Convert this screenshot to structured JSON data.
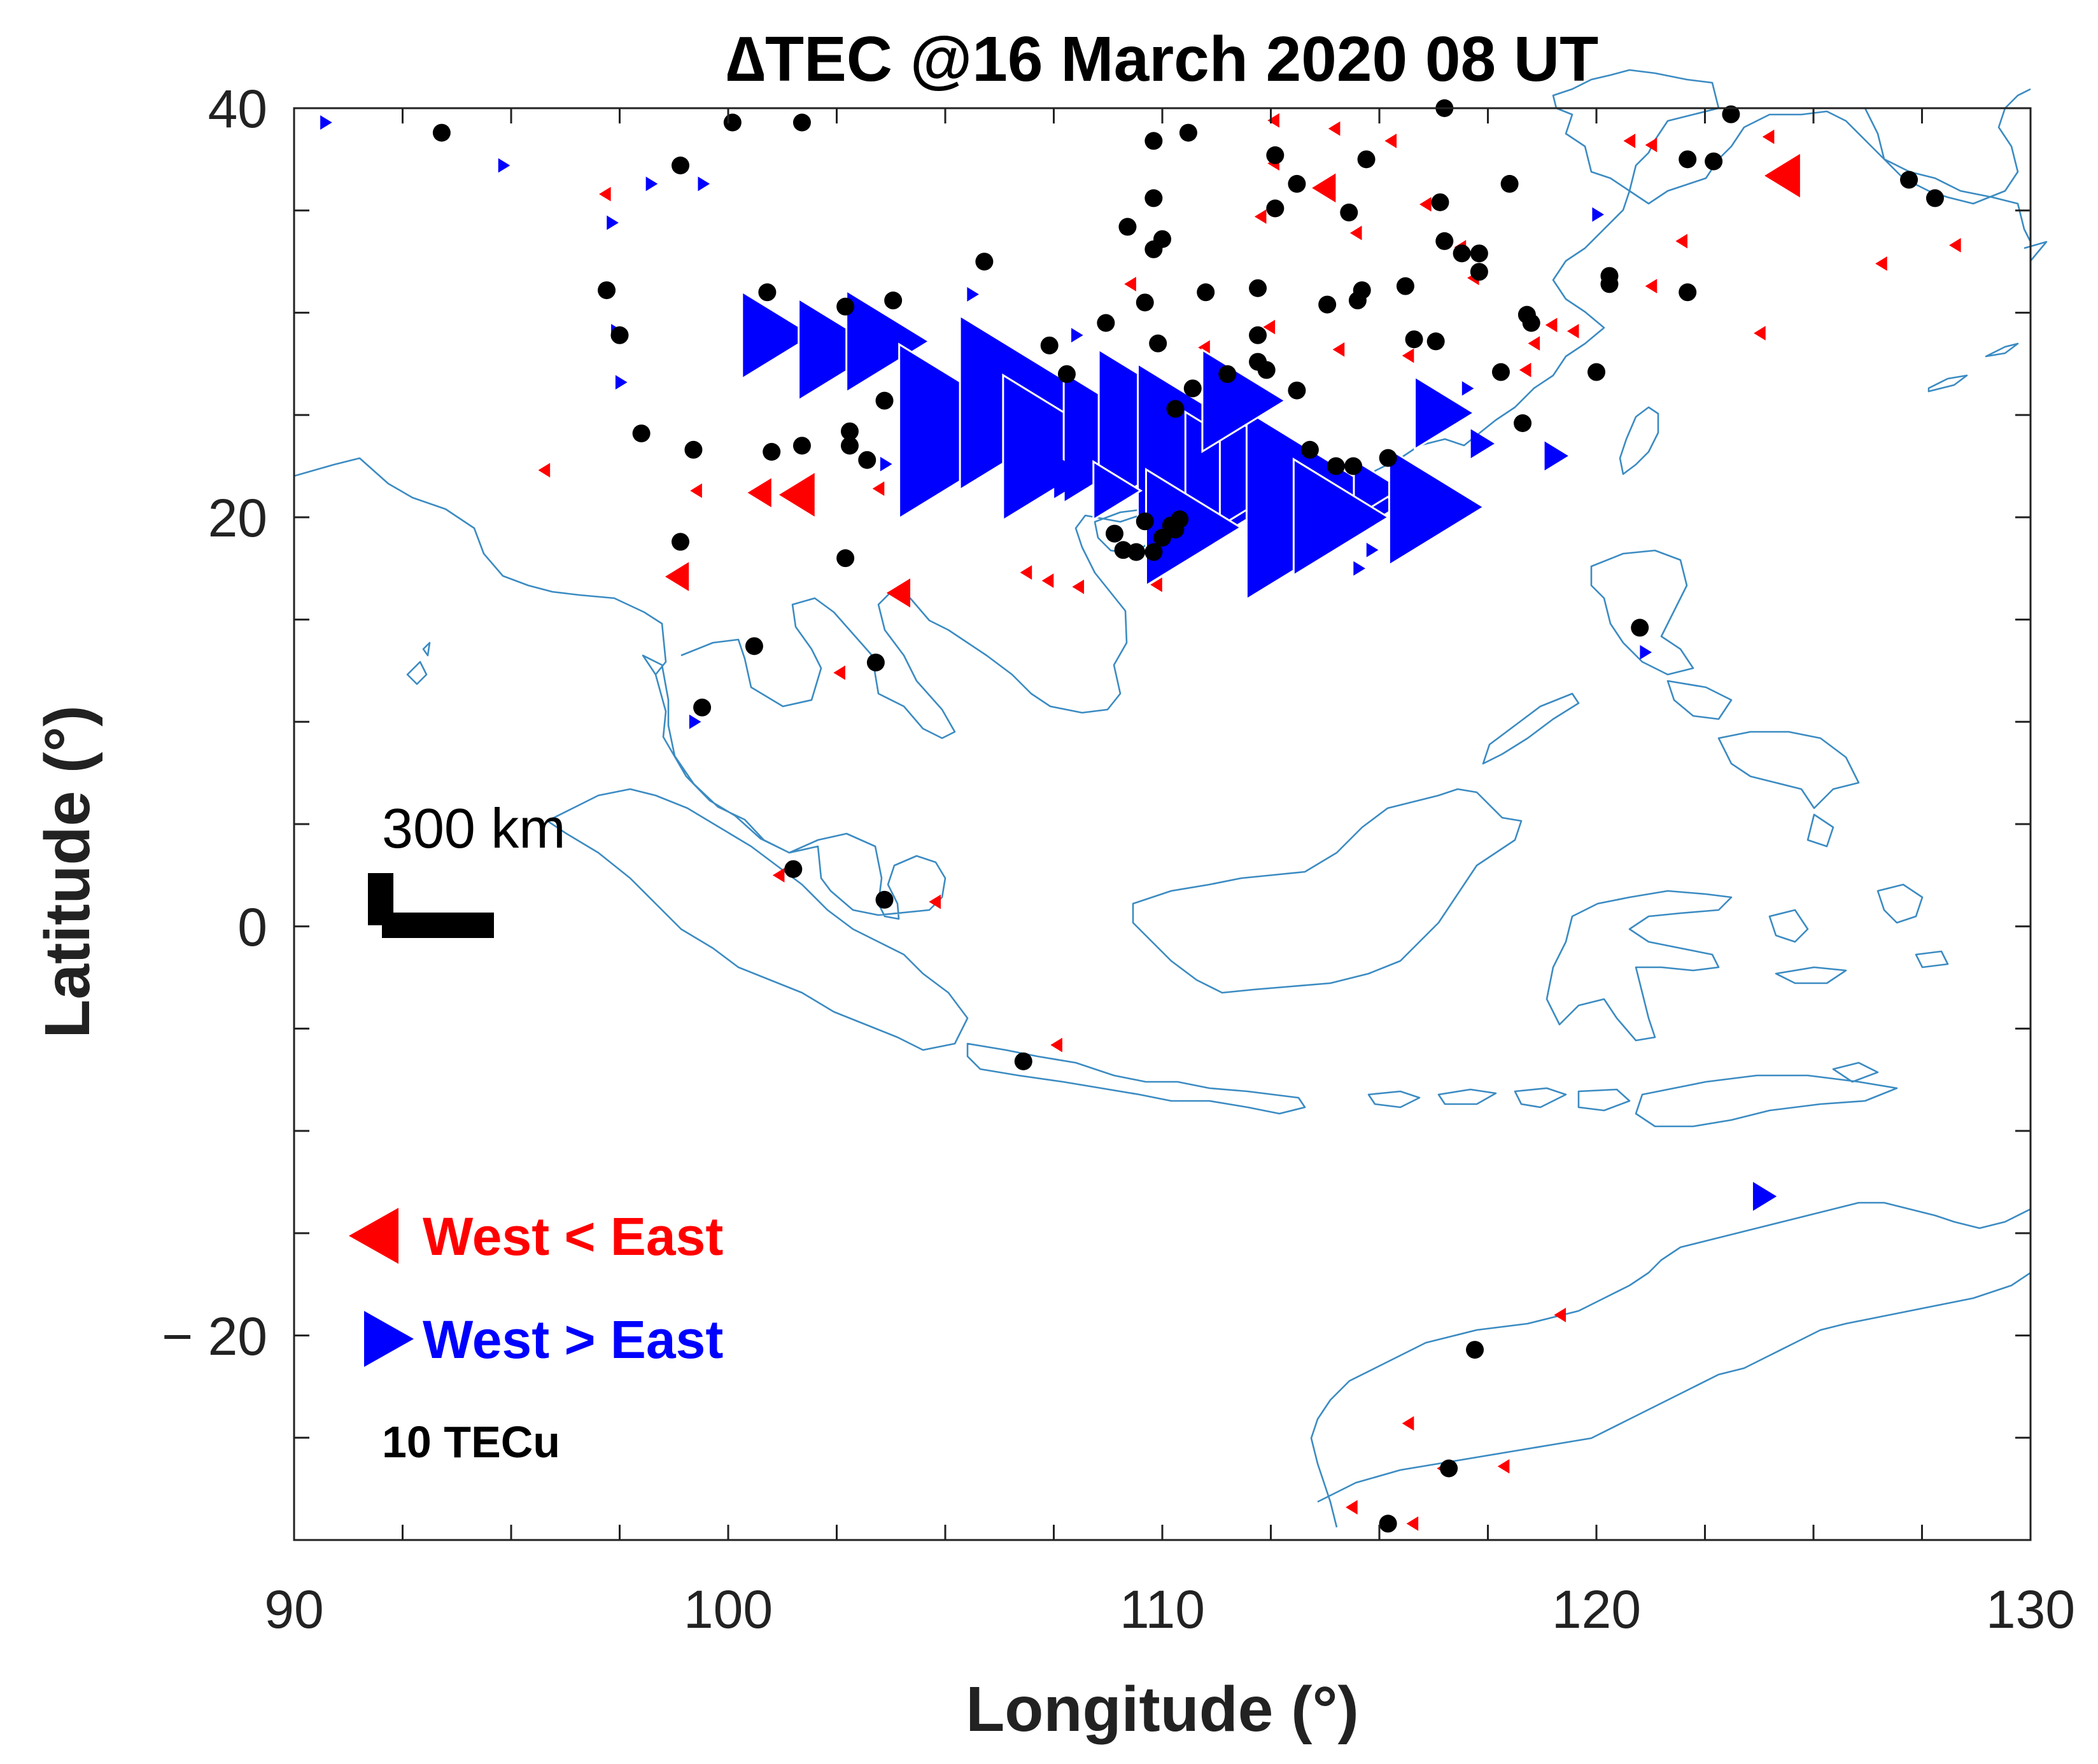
{
  "chart_data": {
    "type": "scatter",
    "title": "∆TEC @16 March 2020  08 UT",
    "xlabel": "Longitude (°)",
    "ylabel": "Latitude (°)",
    "xlim": [
      90,
      130
    ],
    "ylim": [
      -30,
      40
    ],
    "xticks": [
      90,
      100,
      110,
      120,
      130
    ],
    "yticks": [
      40,
      20,
      0,
      -20
    ],
    "ytick_labels": [
      "40",
      "20",
      "0",
      "− 20"
    ],
    "grid": false,
    "scale_label": "300 km",
    "reference_label": "10 TECu",
    "legend": {
      "placement": "bottom-left",
      "entries": [
        {
          "label": "West < East",
          "color": "#ff0000",
          "marker": "left-triangle"
        },
        {
          "label": "West > East",
          "color": "#0000ff",
          "marker": "right-triangle"
        }
      ]
    },
    "colors": {
      "west_lt_east": "#ff0000",
      "west_gt_east": "#0000ff",
      "station": "#000000",
      "coastline": "#3b8bc2"
    },
    "series": [
      {
        "name": "West < East",
        "marker": "left-triangle",
        "color": "#ff0000",
        "points": [
          [
            97.2,
            35.8,
            1
          ],
          [
            95.8,
            22.3,
            1
          ],
          [
            99.3,
            21.3,
            1
          ],
          [
            100.8,
            21.2,
            2
          ],
          [
            101.7,
            21.1,
            3
          ],
          [
            98.9,
            17.1,
            2
          ],
          [
            102.6,
            12.4,
            1
          ],
          [
            104.0,
            16.3,
            2
          ],
          [
            103.5,
            21.4,
            1
          ],
          [
            106.9,
            17.3,
            1
          ],
          [
            107.4,
            16.9,
            1
          ],
          [
            108.1,
            16.6,
            1
          ],
          [
            109.9,
            16.7,
            1
          ],
          [
            112.6,
            39.4,
            1
          ],
          [
            114.0,
            39.0,
            1
          ],
          [
            115.3,
            38.4,
            1
          ],
          [
            113.8,
            36.1,
            2
          ],
          [
            116.1,
            35.3,
            1
          ],
          [
            114.5,
            33.9,
            1
          ],
          [
            116.9,
            33.2,
            1
          ],
          [
            117.2,
            31.7,
            1
          ],
          [
            119.0,
            29.4,
            1
          ],
          [
            118.6,
            28.5,
            1
          ],
          [
            114.1,
            28.2,
            1
          ],
          [
            115.7,
            27.9,
            1
          ],
          [
            118.4,
            27.2,
            1
          ],
          [
            111.0,
            28.3,
            1
          ],
          [
            112.5,
            29.3,
            1
          ],
          [
            120.8,
            38.4,
            1
          ],
          [
            121.3,
            38.2,
            1
          ],
          [
            124.4,
            36.7,
            3
          ],
          [
            124.0,
            38.6,
            1
          ],
          [
            122.0,
            33.5,
            1
          ],
          [
            123.8,
            29.0,
            1
          ],
          [
            126.6,
            32.4,
            1
          ],
          [
            128.3,
            33.3,
            1
          ],
          [
            121.3,
            31.3,
            1
          ],
          [
            119.5,
            29.1,
            1
          ],
          [
            101.2,
            2.5,
            1
          ],
          [
            104.8,
            1.2,
            1
          ],
          [
            107.6,
            -5.8,
            1
          ],
          [
            115.7,
            -24.3,
            1
          ],
          [
            116.5,
            -26.5,
            1
          ],
          [
            117.9,
            -26.4,
            1
          ],
          [
            119.2,
            -19.0,
            1
          ],
          [
            114.4,
            -28.4,
            1
          ],
          [
            115.8,
            -29.2,
            1
          ],
          [
            109.3,
            31.4,
            1
          ],
          [
            112.3,
            34.7,
            1
          ],
          [
            112.6,
            37.3,
            1
          ]
        ]
      },
      {
        "name": "West > East",
        "marker": "right-triangle",
        "color": "#0000ff",
        "points": [
          [
            90.7,
            39.3,
            1
          ],
          [
            94.8,
            37.2,
            1
          ],
          [
            97.3,
            34.4,
            1
          ],
          [
            98.2,
            36.3,
            1
          ],
          [
            99.4,
            36.3,
            1
          ],
          [
            97.5,
            26.6,
            1
          ],
          [
            97.4,
            29.1,
            1
          ],
          [
            100.9,
            28.9,
            6
          ],
          [
            102.3,
            28.2,
            7
          ],
          [
            103.4,
            28.6,
            7
          ],
          [
            103.1,
            30.2,
            1
          ],
          [
            103.6,
            22.6,
            1
          ],
          [
            105.1,
            24.2,
            12
          ],
          [
            106.5,
            25.6,
            12
          ],
          [
            107.3,
            23.4,
            10
          ],
          [
            108.6,
            23.9,
            9
          ],
          [
            109.6,
            24.3,
            11
          ],
          [
            110.5,
            23.6,
            11
          ],
          [
            111.5,
            21.6,
            10
          ],
          [
            112.1,
            22.4,
            8
          ],
          [
            113.2,
            20.6,
            13
          ],
          [
            114.8,
            21.4,
            4
          ],
          [
            116.0,
            20.5,
            8
          ],
          [
            116.3,
            25.1,
            5
          ],
          [
            117.3,
            23.6,
            2
          ],
          [
            119.0,
            23.0,
            2
          ],
          [
            110.4,
            19.5,
            8
          ],
          [
            111.6,
            25.7,
            7
          ],
          [
            107.8,
            22.0,
            3
          ],
          [
            108.8,
            21.3,
            4
          ],
          [
            113.8,
            20.0,
            8
          ],
          [
            114.5,
            17.5,
            1
          ],
          [
            114.8,
            18.4,
            1
          ],
          [
            105.6,
            30.9,
            1
          ],
          [
            108.0,
            28.9,
            1
          ],
          [
            99.2,
            10.0,
            1
          ],
          [
            121.1,
            13.4,
            1
          ],
          [
            120.0,
            34.8,
            1
          ],
          [
            117.0,
            26.3,
            1
          ],
          [
            123.8,
            -13.2,
            2
          ]
        ]
      },
      {
        "name": "stations",
        "marker": "dot",
        "color": "#000000",
        "points": [
          [
            93.4,
            38.8
          ],
          [
            98.9,
            37.2
          ],
          [
            100.1,
            39.3
          ],
          [
            101.7,
            39.3
          ],
          [
            97.2,
            31.1
          ],
          [
            97.5,
            28.9
          ],
          [
            100.9,
            31.0
          ],
          [
            102.7,
            30.3
          ],
          [
            103.8,
            30.6
          ],
          [
            98.0,
            24.1
          ],
          [
            99.2,
            23.3
          ],
          [
            101.0,
            23.2
          ],
          [
            101.7,
            23.5
          ],
          [
            102.8,
            24.2
          ],
          [
            102.8,
            23.5
          ],
          [
            103.2,
            22.8
          ],
          [
            103.6,
            25.7
          ],
          [
            105.9,
            32.5
          ],
          [
            107.4,
            28.4
          ],
          [
            107.8,
            27.0
          ],
          [
            108.7,
            29.5
          ],
          [
            109.2,
            34.2
          ],
          [
            109.8,
            38.4
          ],
          [
            110.6,
            38.8
          ],
          [
            109.8,
            35.6
          ],
          [
            109.8,
            33.1
          ],
          [
            110.0,
            33.6
          ],
          [
            109.6,
            30.5
          ],
          [
            109.9,
            28.5
          ],
          [
            110.3,
            25.3
          ],
          [
            110.7,
            26.3
          ],
          [
            111.0,
            31.0
          ],
          [
            111.5,
            27.0
          ],
          [
            112.2,
            31.2
          ],
          [
            112.2,
            28.9
          ],
          [
            112.2,
            27.6
          ],
          [
            112.4,
            27.2
          ],
          [
            112.6,
            35.1
          ],
          [
            112.6,
            37.7
          ],
          [
            113.1,
            26.2
          ],
          [
            113.1,
            36.3
          ],
          [
            113.4,
            23.3
          ],
          [
            113.8,
            30.4
          ],
          [
            114.0,
            22.5
          ],
          [
            114.4,
            22.5
          ],
          [
            114.3,
            34.9
          ],
          [
            114.5,
            30.6
          ],
          [
            114.6,
            31.1
          ],
          [
            114.7,
            37.5
          ],
          [
            115.2,
            22.9
          ],
          [
            115.6,
            31.3
          ],
          [
            115.8,
            28.7
          ],
          [
            116.3,
            28.6
          ],
          [
            116.4,
            35.4
          ],
          [
            116.5,
            33.5
          ],
          [
            116.5,
            40.0
          ],
          [
            116.9,
            32.9
          ],
          [
            117.3,
            32.9
          ],
          [
            117.3,
            32.0
          ],
          [
            117.8,
            27.1
          ],
          [
            118.0,
            36.3
          ],
          [
            118.3,
            24.6
          ],
          [
            118.4,
            29.9
          ],
          [
            118.5,
            29.5
          ],
          [
            120.0,
            27.1
          ],
          [
            120.3,
            31.8
          ],
          [
            120.3,
            31.4
          ],
          [
            122.1,
            31.0
          ],
          [
            122.1,
            37.5
          ],
          [
            122.7,
            37.4
          ],
          [
            123.1,
            39.7
          ],
          [
            127.2,
            36.5
          ],
          [
            127.8,
            35.6
          ],
          [
            108.9,
            19.2
          ],
          [
            109.1,
            18.4
          ],
          [
            109.4,
            18.3
          ],
          [
            109.6,
            19.8
          ],
          [
            109.8,
            18.3
          ],
          [
            110.0,
            19.0
          ],
          [
            110.3,
            19.4
          ],
          [
            110.4,
            19.9
          ],
          [
            110.2,
            19.6
          ],
          [
            98.9,
            18.8
          ],
          [
            102.7,
            18.0
          ],
          [
            100.6,
            13.7
          ],
          [
            103.4,
            12.9
          ],
          [
            99.4,
            10.7
          ],
          [
            101.5,
            2.8
          ],
          [
            103.6,
            1.3
          ],
          [
            106.8,
            -6.6
          ],
          [
            121.0,
            14.6
          ],
          [
            117.2,
            -20.7
          ],
          [
            116.6,
            -26.5
          ],
          [
            115.2,
            -29.2
          ]
        ]
      }
    ]
  }
}
